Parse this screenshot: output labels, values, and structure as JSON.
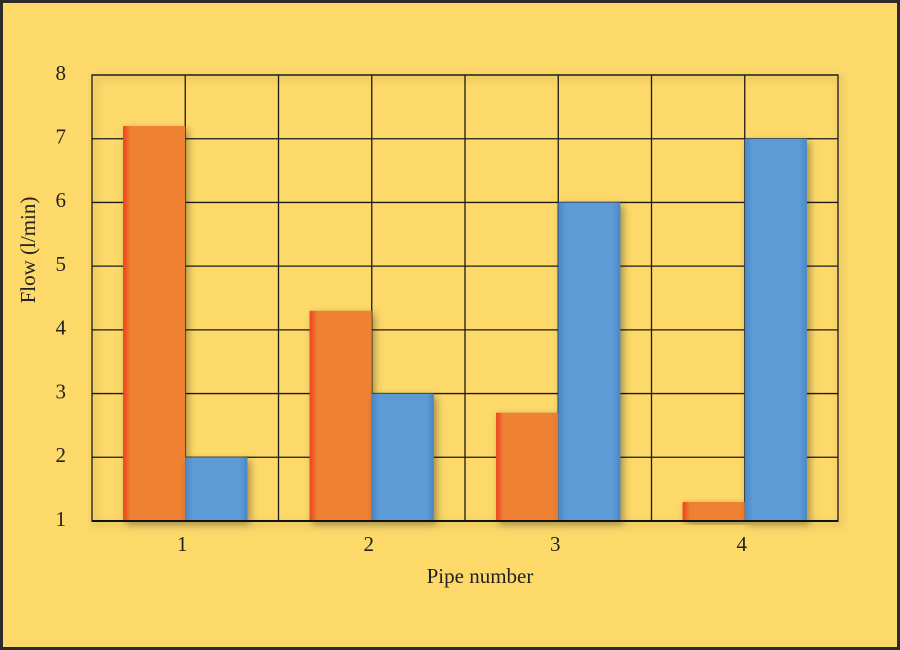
{
  "chart_data": {
    "type": "bar",
    "x_label": "Pipe number",
    "y_label": "Flow (l/min)",
    "categories": [
      "1",
      "2",
      "3",
      "4"
    ],
    "series": [
      {
        "color": "#ee8133",
        "values": [
          7.2,
          4.3,
          2.7,
          1.3
        ]
      },
      {
        "color": "#5b9bd5",
        "values": [
          2,
          3,
          6,
          7
        ]
      }
    ],
    "ylim": [
      1,
      8
    ],
    "yticks": [
      1,
      2,
      3,
      4,
      5,
      6,
      7,
      8
    ],
    "grid": true
  }
}
